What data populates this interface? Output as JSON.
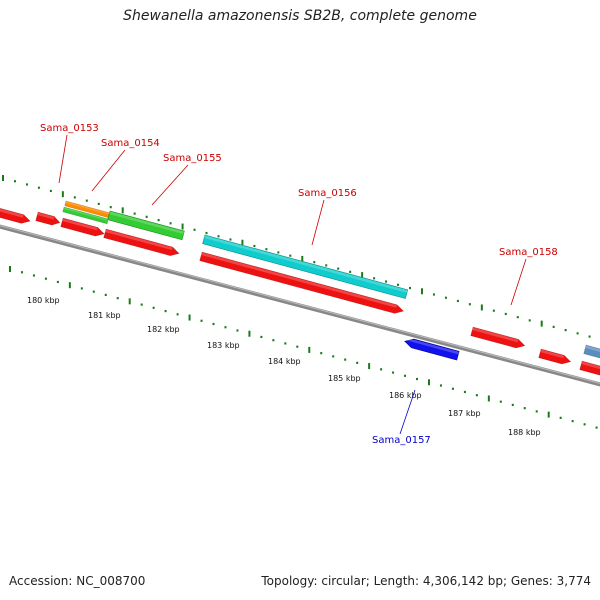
{
  "title": "Shewanella amazonensis SB2B, complete genome",
  "footer": {
    "accession": "Accession: NC_008700",
    "summary": "Topology: circular; Length: 4,306,142 bp; Genes: 3,774"
  },
  "scale_labels": [
    "180 kbp",
    "181 kbp",
    "182 kbp",
    "183 kbp",
    "184 kbp",
    "185 kbp",
    "186 kbp",
    "187 kbp",
    "188 kbp"
  ],
  "gene_labels": [
    {
      "name": "Sama_0153",
      "color": "#cc0000"
    },
    {
      "name": "Sama_0154",
      "color": "#cc0000"
    },
    {
      "name": "Sama_0155",
      "color": "#cc0000"
    },
    {
      "name": "Sama_0156",
      "color": "#cc0000"
    },
    {
      "name": "Sama_0158",
      "color": "#cc0000"
    },
    {
      "name": "Sama_0157",
      "color": "#0000cc"
    }
  ],
  "colors": {
    "cds_red": "#ee1111",
    "orange": "#ff8c00",
    "green": "#33cc33",
    "cyan": "#11cccc",
    "blue": "#1111ee",
    "steel": "#5b8cc0",
    "backbone": "#888888",
    "tick": "#1a7a1a"
  }
}
